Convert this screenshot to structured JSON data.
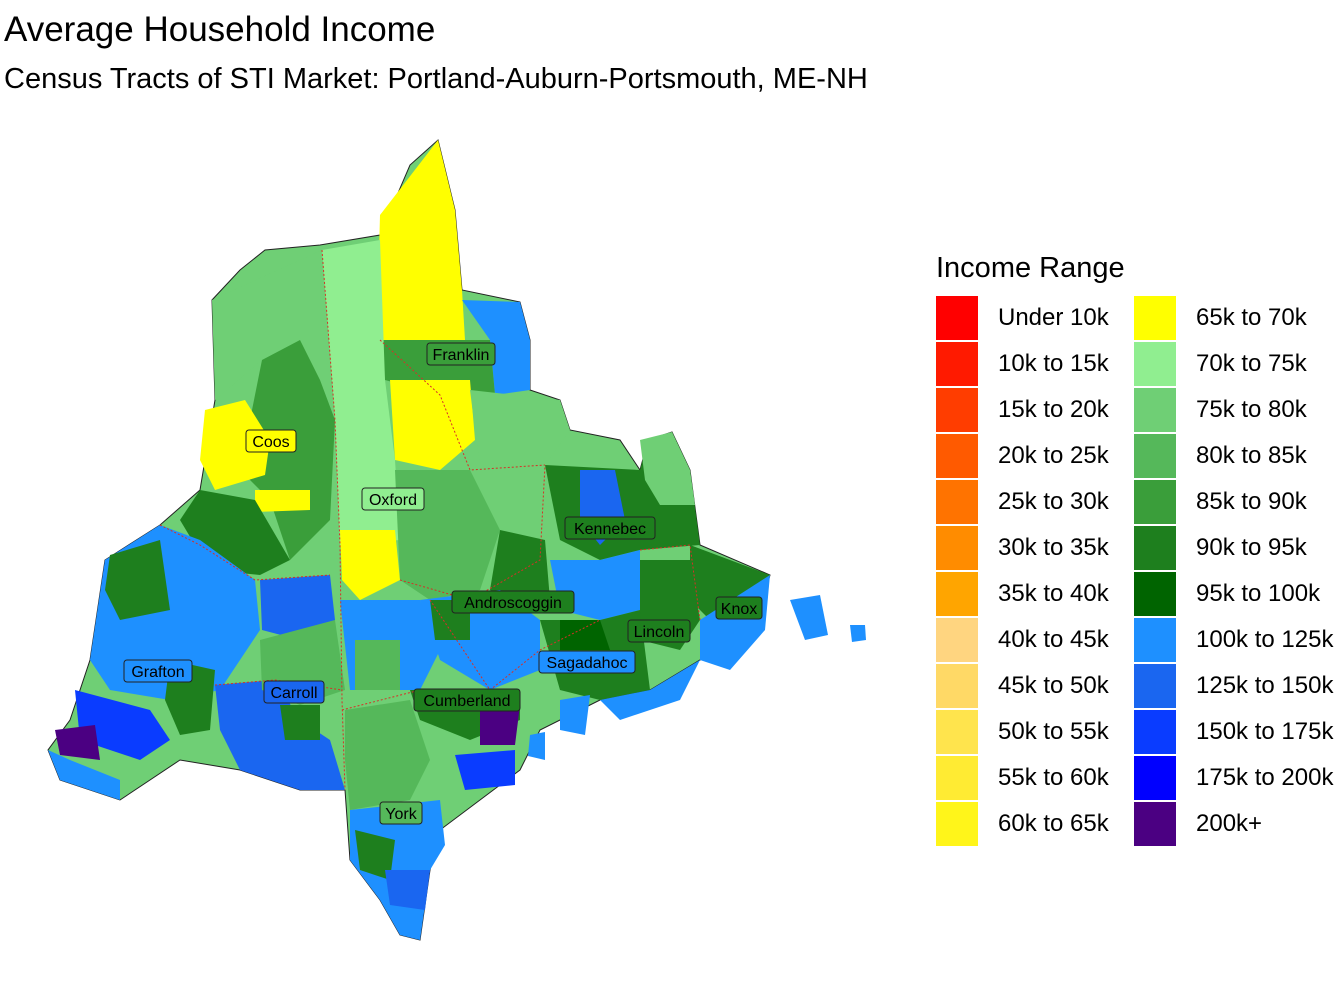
{
  "title": "Average Household Income",
  "subtitle": "Census Tracts of STI Market: Portland-Auburn-Portsmouth, ME-NH",
  "legend": {
    "title": "Income Range",
    "items": [
      {
        "label": "Under 10k",
        "color": "#FF0000"
      },
      {
        "label": "10k to 15k",
        "color": "#FF1A00"
      },
      {
        "label": "15k to 20k",
        "color": "#FF3D00"
      },
      {
        "label": "20k to 25k",
        "color": "#FF5A00"
      },
      {
        "label": "25k to 30k",
        "color": "#FF7300"
      },
      {
        "label": "30k to 35k",
        "color": "#FF8C00"
      },
      {
        "label": "35k to 40k",
        "color": "#FFA500"
      },
      {
        "label": "40k to 45k",
        "color": "#FFD580"
      },
      {
        "label": "45k to 50k",
        "color": "#FFD966"
      },
      {
        "label": "50k to 55k",
        "color": "#FFE44D"
      },
      {
        "label": "55k to 60k",
        "color": "#FFEB33"
      },
      {
        "label": "60k to 65k",
        "color": "#FFF51A"
      },
      {
        "label": "65k to 70k",
        "color": "#FFFF00"
      },
      {
        "label": "70k to 75k",
        "color": "#90EE90"
      },
      {
        "label": "75k to 80k",
        "color": "#6FCF75"
      },
      {
        "label": "80k to 85k",
        "color": "#55B85A"
      },
      {
        "label": "85k to 90k",
        "color": "#3A9E3A"
      },
      {
        "label": "90k to 95k",
        "color": "#1E7F1E"
      },
      {
        "label": "95k to 100k",
        "color": "#006400"
      },
      {
        "label": "100k to 125k",
        "color": "#1E90FF"
      },
      {
        "label": "125k to 150k",
        "color": "#1A66F0"
      },
      {
        "label": "150k to 175k",
        "color": "#0A3CFF"
      },
      {
        "label": "175k to 200k",
        "color": "#0000FF"
      },
      {
        "label": "200k+",
        "color": "#4B0082"
      }
    ]
  },
  "counties": [
    "Franklin",
    "Coos",
    "Oxford",
    "Kennebec",
    "Androscoggin",
    "Lincoln",
    "Knox",
    "Sagadahoc",
    "Grafton",
    "Carroll",
    "Cumberland",
    "York"
  ]
}
